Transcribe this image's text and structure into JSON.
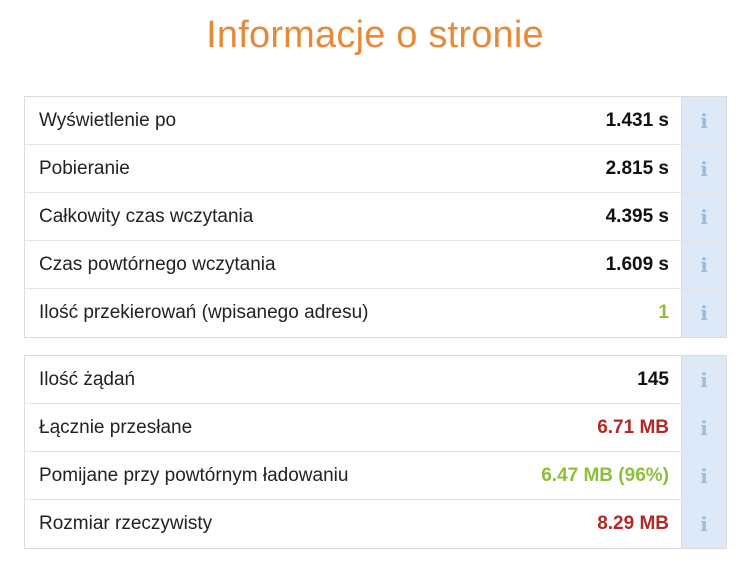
{
  "title": "Informacje o stronie",
  "colors": {
    "title": "#e8893a",
    "value_default": "#111111",
    "value_good": "#8dbf3a",
    "value_bad": "#b02a26",
    "info_bg": "#dde9f6",
    "info_icon": "#9bbcdb"
  },
  "info_icon_name": "info-icon",
  "info_icon_glyph": "i",
  "timing": [
    {
      "label": "Wyświetlenie po",
      "value": "1.431 s",
      "status": "default"
    },
    {
      "label": "Pobieranie",
      "value": "2.815 s",
      "status": "default"
    },
    {
      "label": "Całkowity czas wczytania",
      "value": "4.395 s",
      "status": "default"
    },
    {
      "label": "Czas powtórnego wczytania",
      "value": "1.609 s",
      "status": "default"
    },
    {
      "label": "Ilość przekierowań (wpisanego adresu)",
      "value": "1",
      "status": "good"
    }
  ],
  "size": [
    {
      "label": "Ilość żądań",
      "value": "145",
      "status": "default"
    },
    {
      "label": "Łącznie przesłane",
      "value": "6.71 MB",
      "status": "bad"
    },
    {
      "label": "Pomijane przy powtórnym ładowaniu",
      "value": "6.47 MB (96%)",
      "status": "good"
    },
    {
      "label": "Rozmiar rzeczywisty",
      "value": "8.29 MB",
      "status": "bad"
    }
  ]
}
